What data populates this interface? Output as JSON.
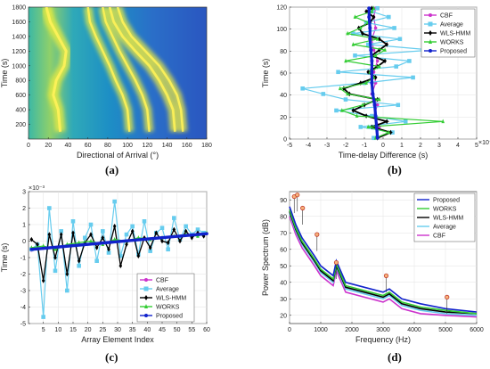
{
  "panels": [
    {
      "id": "a",
      "caption": "(a)",
      "chart_data": {
        "type": "heatmap",
        "xlabel": "Directional of Arrival (°)",
        "ylabel": "Time (s)",
        "xlim": [
          0,
          180
        ],
        "ylim": [
          0,
          1800
        ],
        "xticks": [
          0,
          20,
          40,
          60,
          80,
          100,
          120,
          140,
          160,
          180
        ],
        "yticks": [
          200,
          400,
          600,
          800,
          1000,
          1200,
          1400,
          1600,
          1800
        ],
        "tracks": [
          {
            "x": [
              18,
              22,
              30,
              38,
              36,
              28,
              25,
              30,
              32
            ],
            "y": [
              1800,
              1600,
              1400,
              1200,
              1000,
              800,
              600,
              400,
              100
            ],
            "strength": 1.0
          },
          {
            "x": [
              60,
              62,
              68,
              75,
              82,
              88,
              95,
              100,
              102
            ],
            "y": [
              1800,
              1600,
              1400,
              1200,
              1000,
              800,
              600,
              400,
              100
            ],
            "strength": 0.6
          },
          {
            "x": [
              75,
              78,
              85,
              92,
              100,
              108,
              115,
              120,
              122
            ],
            "y": [
              1800,
              1600,
              1400,
              1200,
              1000,
              800,
              600,
              400,
              100
            ],
            "strength": 0.6
          },
          {
            "x": [
              82,
              86,
              95,
              108,
              122,
              132,
              140,
              146,
              148
            ],
            "y": [
              1800,
              1600,
              1400,
              1200,
              1000,
              800,
              600,
              400,
              100
            ],
            "strength": 0.85
          },
          {
            "x": [
              90,
              95,
              104,
              118,
              132,
              142,
              150,
              154,
              156
            ],
            "y": [
              1800,
              1600,
              1400,
              1200,
              1000,
              800,
              600,
              400,
              100
            ],
            "strength": 0.7
          }
        ]
      }
    },
    {
      "id": "b",
      "caption": "(b)",
      "chart_data": {
        "type": "scatter",
        "xlabel": "Time-delay Difference (s)",
        "ylabel": "Time (s)",
        "xlim": [
          -5,
          5
        ],
        "ylim": [
          0,
          120
        ],
        "x_multiplier": "×10⁻³",
        "xticks": [
          -5,
          -4,
          -3,
          -2,
          -1,
          0,
          1,
          2,
          3,
          4,
          5
        ],
        "yticks": [
          0,
          20,
          40,
          60,
          80,
          100,
          120
        ],
        "legend_position": "top-right",
        "series": [
          {
            "name": "CBF",
            "color": "#cc33cc",
            "marker": "circle",
            "y": [
              1,
              11,
              21,
              31,
              41,
              51,
              61,
              71,
              81,
              91,
              101,
              111,
              119
            ],
            "x": [
              -0.4,
              -0.2,
              -0.5,
              -0.3,
              -0.6,
              -0.4,
              -0.5,
              -0.3,
              -0.5,
              -0.6,
              -0.4,
              -0.5,
              -0.4
            ]
          },
          {
            "name": "Average",
            "color": "#66ccee",
            "marker": "square",
            "y": [
              1,
              6,
              11,
              16,
              21,
              26,
              31,
              36,
              41,
              46,
              51,
              56,
              61,
              66,
              71,
              76,
              81,
              86,
              91,
              96,
              101,
              106,
              111,
              116,
              119
            ],
            "x": [
              -0.5,
              0.5,
              -1.2,
              1.2,
              -0.6,
              -2.5,
              0.8,
              -2.0,
              -3.2,
              -4.3,
              -1.0,
              1.6,
              -2.4,
              0.7,
              1.4,
              -1.5,
              2.6,
              -0.8,
              0.9,
              -1.6,
              0.6,
              -0.9,
              0.3,
              -0.6,
              -0.3
            ]
          },
          {
            "name": "WLS-HMM",
            "color": "#000000",
            "marker": "diamond",
            "y": [
              1,
              6,
              11,
              16,
              21,
              26,
              31,
              36,
              41,
              46,
              51,
              56,
              61,
              66,
              71,
              76,
              81,
              86,
              91,
              96,
              101,
              106,
              111,
              116,
              119
            ],
            "x": [
              -0.3,
              0.4,
              -0.6,
              0.2,
              -0.9,
              -1.6,
              -1.0,
              -0.3,
              -1.8,
              -2.1,
              -1.2,
              -0.4,
              -0.8,
              -0.3,
              0.1,
              -0.6,
              -0.2,
              0.2,
              -0.2,
              -1.1,
              -1.3,
              -0.7,
              -0.5,
              -0.9,
              -0.6
            ]
          },
          {
            "name": "WORKS",
            "color": "#33cc33",
            "marker": "triangle",
            "y": [
              1,
              6,
              11,
              16,
              21,
              26,
              31,
              36,
              41,
              46,
              51,
              56,
              61,
              66,
              71,
              76,
              81,
              86,
              91,
              96,
              101,
              106,
              111,
              116,
              119
            ],
            "x": [
              -0.4,
              0.3,
              -0.8,
              3.2,
              -1.4,
              -2.2,
              -1.1,
              -0.2,
              -1.9,
              -2.3,
              -0.9,
              -0.5,
              -0.7,
              -0.2,
              -2.0,
              -0.4,
              0.1,
              -1.6,
              -0.3,
              -1.9,
              -1.2,
              -0.8,
              -1.5,
              -0.6,
              -0.5
            ]
          },
          {
            "name": "Proposed",
            "color": "#1122cc",
            "marker": "circle",
            "y": [
              1,
              11,
              21,
              31,
              41,
              51,
              61,
              71,
              81,
              91,
              101,
              111,
              119
            ],
            "x": [
              -0.3,
              -0.35,
              -0.4,
              -0.45,
              -0.55,
              -0.6,
              -0.6,
              -0.6,
              -0.65,
              -0.7,
              -0.7,
              -0.75,
              -0.75
            ]
          }
        ]
      }
    },
    {
      "id": "c",
      "caption": "(c)",
      "chart_data": {
        "type": "line",
        "xlabel": "Array Element Index",
        "ylabel": "Time (s)",
        "xlim": [
          0,
          60
        ],
        "ylim": [
          -5,
          3
        ],
        "y_multiplier": "×10⁻³",
        "xticks": [
          5,
          10,
          15,
          20,
          25,
          30,
          35,
          40,
          45,
          50,
          55,
          60
        ],
        "yticks": [
          -5,
          -4,
          -3,
          -2,
          -1,
          0,
          1,
          2,
          3
        ],
        "legend_position": "bottom-right",
        "series": [
          {
            "name": "CBF",
            "color": "#cc33cc",
            "marker": "circle",
            "x": [
              1,
              60
            ],
            "y": [
              -0.55,
              0.45
            ]
          },
          {
            "name": "Average",
            "color": "#66ccee",
            "marker": "square",
            "x": [
              1,
              3,
              5,
              7,
              9,
              11,
              13,
              15,
              17,
              19,
              21,
              23,
              25,
              27,
              29,
              31,
              33,
              35,
              37,
              39,
              41,
              43,
              45,
              47,
              49,
              51,
              53,
              55,
              57,
              59
            ],
            "y": [
              -0.5,
              -0.2,
              -4.6,
              2.0,
              -1.8,
              0.6,
              -3.0,
              1.2,
              -1.5,
              0.2,
              1.0,
              -1.2,
              0.6,
              -0.7,
              2.4,
              -0.9,
              0.4,
              0.9,
              -0.8,
              1.2,
              -0.6,
              0.5,
              0.8,
              -0.5,
              1.4,
              0.1,
              0.9,
              0.4,
              0.7,
              0.5
            ]
          },
          {
            "name": "WLS-HMM",
            "color": "#000000",
            "marker": "diamond",
            "x": [
              1,
              3,
              5,
              7,
              9,
              11,
              13,
              15,
              17,
              19,
              21,
              23,
              25,
              27,
              29,
              31,
              33,
              35,
              37,
              39,
              41,
              43,
              45,
              47,
              49,
              51,
              53,
              55,
              57,
              59
            ],
            "y": [
              0.1,
              -0.2,
              -2.4,
              0.4,
              -1.0,
              0.4,
              -2.0,
              0.5,
              -1.2,
              -0.1,
              0.4,
              -0.4,
              0.2,
              -0.5,
              0.9,
              -1.5,
              -0.2,
              0.6,
              -0.9,
              0.2,
              -0.4,
              0.5,
              0.0,
              -0.1,
              0.7,
              0.0,
              0.6,
              0.2,
              0.5,
              0.3
            ]
          },
          {
            "name": "WORKS",
            "color": "#33cc33",
            "marker": "triangle",
            "x": [
              1,
              5,
              9,
              13,
              17,
              21,
              25,
              29,
              33,
              37,
              41,
              45,
              49,
              53,
              57,
              60
            ],
            "y": [
              -0.4,
              -0.3,
              -0.5,
              -0.2,
              -0.1,
              0.0,
              -0.2,
              0.1,
              0.0,
              0.2,
              0.1,
              0.2,
              0.3,
              0.4,
              0.3,
              0.5
            ]
          },
          {
            "name": "Proposed",
            "color": "#1122cc",
            "marker": "circle",
            "x": [
              1,
              60
            ],
            "y": [
              -0.5,
              0.45
            ]
          }
        ]
      }
    },
    {
      "id": "d",
      "caption": "(d)",
      "chart_data": {
        "type": "line",
        "xlabel": "Frequency (Hz)",
        "ylabel": "Power Spectrum (dB)",
        "xlim": [
          0,
          6000
        ],
        "ylim": [
          15,
          95
        ],
        "xticks": [
          0,
          1000,
          2000,
          3000,
          4000,
          5000,
          6000
        ],
        "yticks": [
          20,
          30,
          40,
          50,
          60,
          70,
          80,
          90
        ],
        "legend_position": "top-right",
        "peaks": [
          {
            "x": 150,
            "y": 92
          },
          {
            "x": 250,
            "y": 93
          },
          {
            "x": 420,
            "y": 85
          },
          {
            "x": 880,
            "y": 69
          },
          {
            "x": 1500,
            "y": 52
          },
          {
            "x": 3100,
            "y": 44
          },
          {
            "x": 5050,
            "y": 31
          }
        ],
        "series": [
          {
            "name": "Proposed",
            "color": "#1122cc",
            "x": [
              0,
              200,
              400,
              800,
              1000,
              1400,
              1500,
              1800,
              2400,
              3000,
              3200,
              3600,
              4200,
              5000,
              6000
            ],
            "y": [
              86,
              75,
              67,
              56,
              50,
              44,
              53,
              40,
              37,
              34,
              36,
              30,
              27,
              24,
              22
            ]
          },
          {
            "name": "WORKS",
            "color": "#33cc33",
            "x": [
              0,
              200,
              400,
              800,
              1000,
              1400,
              1500,
              1800,
              2400,
              3000,
              3200,
              3600,
              4200,
              5000,
              6000
            ],
            "y": [
              84,
              73,
              65,
              54,
              48,
              42,
              51,
              38,
              35,
              32,
              34,
              28,
              25,
              23,
              21
            ]
          },
          {
            "name": "WLS-HMM",
            "color": "#000000",
            "x": [
              0,
              200,
              400,
              800,
              1000,
              1400,
              1500,
              1800,
              2400,
              3000,
              3200,
              3600,
              4200,
              5000,
              6000
            ],
            "y": [
              83,
              72,
              64,
              53,
              47,
              41,
              50,
              37,
              34,
              31,
              33,
              27,
              24,
              22,
              21
            ]
          },
          {
            "name": "Average",
            "color": "#66ccee",
            "x": [
              0,
              200,
              400,
              800,
              1000,
              1400,
              1500,
              1800,
              2400,
              3000,
              3200,
              3600,
              4200,
              5000,
              6000
            ],
            "y": [
              82,
              71,
              63,
              52,
              46,
              40,
              49,
              36,
              33,
              30,
              32,
              26,
              23,
              21,
              20
            ]
          },
          {
            "name": "CBF",
            "color": "#cc33cc",
            "x": [
              0,
              200,
              400,
              800,
              1000,
              1400,
              1500,
              1800,
              2400,
              3000,
              3200,
              3600,
              4200,
              5000,
              6000
            ],
            "y": [
              80,
              69,
              61,
              50,
              44,
              38,
              47,
              34,
              31,
              28,
              30,
              24,
              21,
              20,
              19
            ]
          }
        ]
      }
    }
  ]
}
